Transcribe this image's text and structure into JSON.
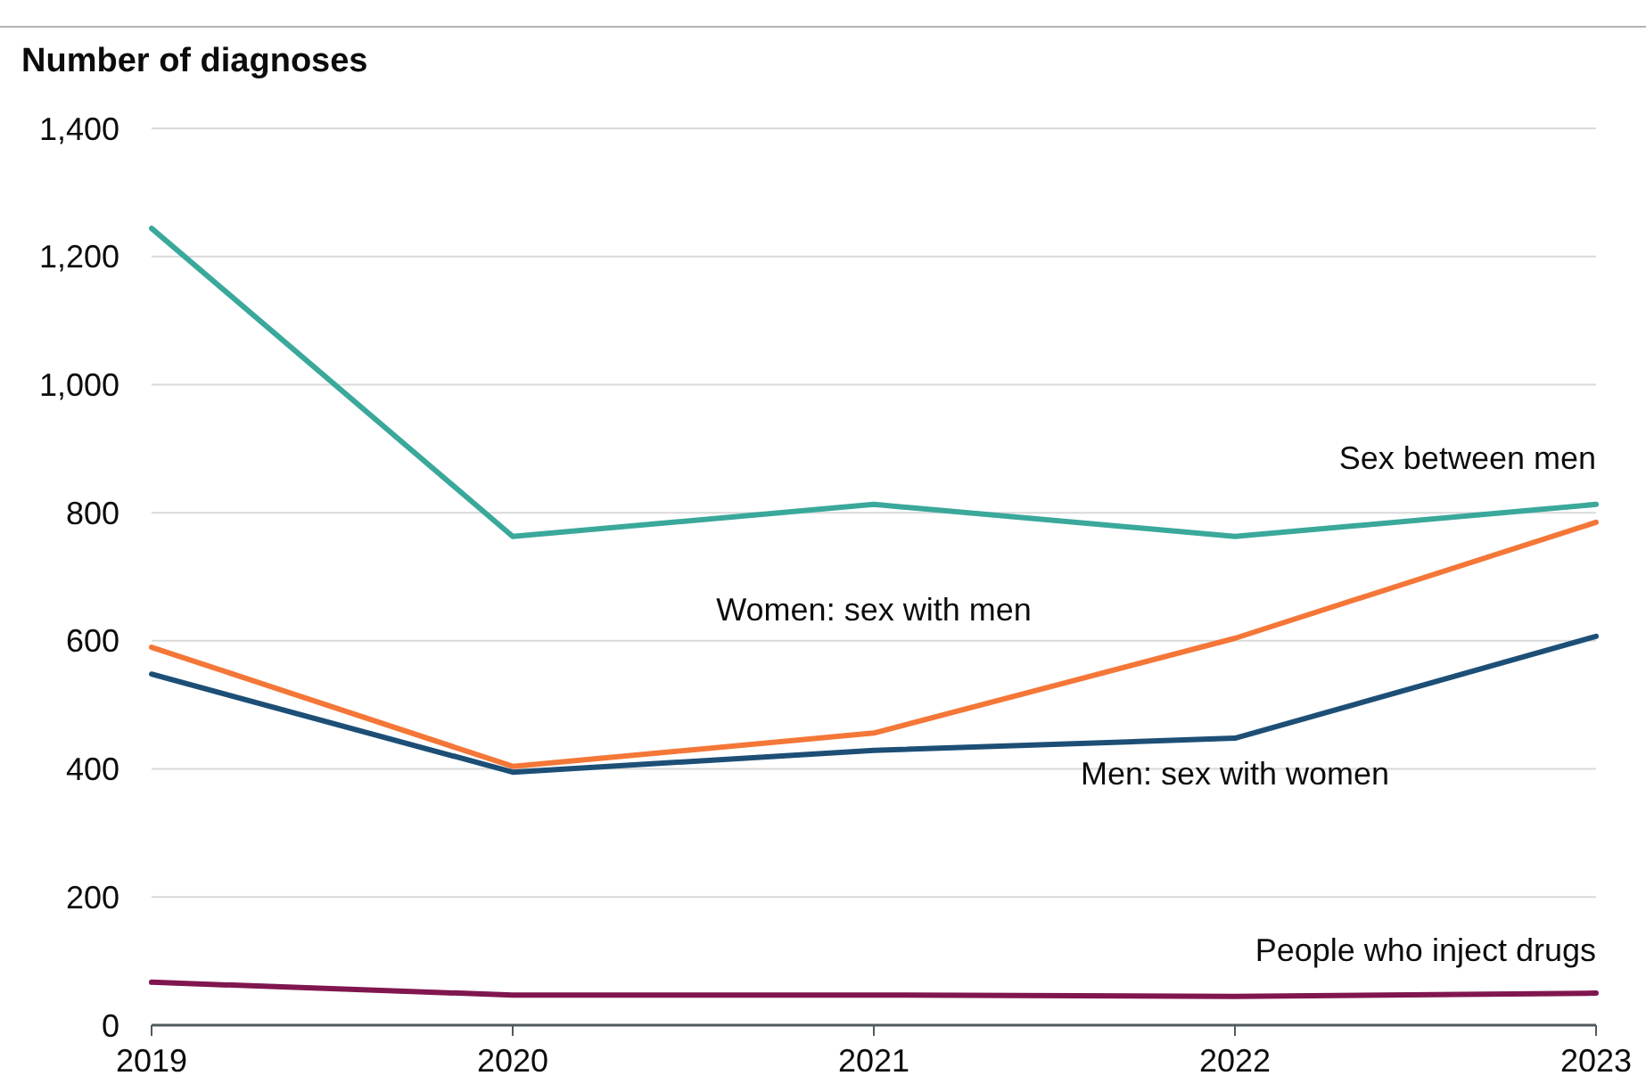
{
  "chart_data": {
    "type": "line",
    "ylabel": "Number of diagnoses",
    "x": [
      2019,
      2020,
      2021,
      2022,
      2023
    ],
    "xlim": [
      2019,
      2023
    ],
    "xticks": [
      2019,
      2020,
      2021,
      2022,
      2023
    ],
    "ylim": [
      0,
      1400
    ],
    "yticks": [
      {
        "value": 0,
        "label": "0"
      },
      {
        "value": 200,
        "label": "200"
      },
      {
        "value": 400,
        "label": "400"
      },
      {
        "value": 600,
        "label": "600"
      },
      {
        "value": 800,
        "label": "800"
      },
      {
        "value": 1000,
        "label": "1,000"
      },
      {
        "value": 1200,
        "label": "1,200"
      },
      {
        "value": 1400,
        "label": "1,400"
      }
    ],
    "grid": "y",
    "legend": false,
    "marker": "none",
    "line_style": "solid",
    "series": [
      {
        "name": "Sex between men",
        "color": "#3aa89b",
        "values": [
          1244,
          763,
          813,
          763,
          813
        ]
      },
      {
        "name": "Women: sex with men",
        "color": "#f47738",
        "values": [
          590,
          404,
          456,
          604,
          785
        ]
      },
      {
        "name": "Men: sex with women",
        "color": "#1d4f76",
        "values": [
          548,
          395,
          429,
          448,
          607
        ]
      },
      {
        "name": "People who inject drugs",
        "color": "#801650",
        "values": [
          67,
          47,
          47,
          45,
          50
        ]
      }
    ]
  }
}
